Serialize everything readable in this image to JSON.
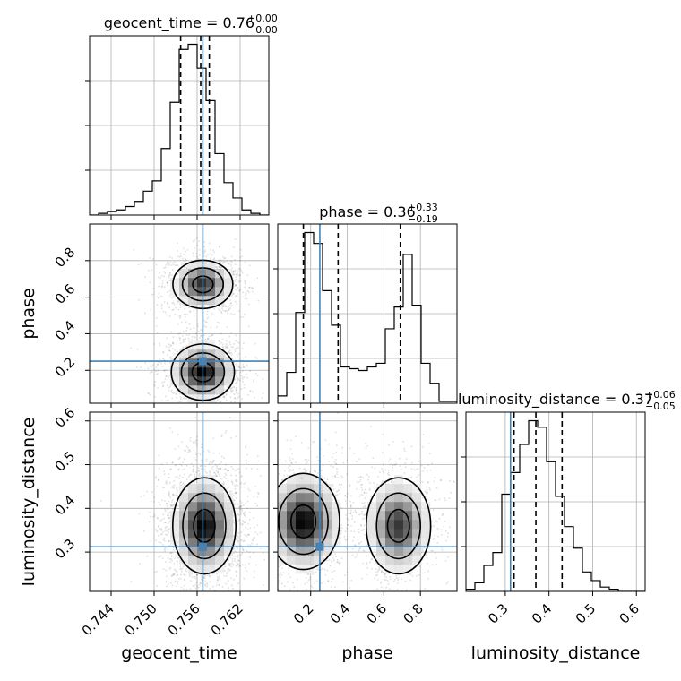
{
  "chart_data": {
    "type": "corner",
    "parameters": [
      "geocent_time",
      "phase",
      "luminosity_distance"
    ],
    "truth": {
      "geocent_time": 0.7568,
      "phase": 0.25,
      "luminosity_distance": 0.312
    },
    "titles": {
      "geocent_time": {
        "name": "geocent_time",
        "value": "0.76",
        "plus": "+0.00",
        "minus": "−0.00"
      },
      "phase": {
        "name": "phase",
        "value": "0.36",
        "plus": "+0.33",
        "minus": "−0.19"
      },
      "luminosity_distance": {
        "name": "luminosity_distance",
        "value": "0.37",
        "plus": "+0.06",
        "minus": "−0.05"
      }
    },
    "axes": {
      "geocent_time": {
        "range": [
          0.741,
          0.766
        ],
        "ticks": [
          0.744,
          0.75,
          0.756,
          0.762
        ],
        "tick_labels": [
          "0.744",
          "0.750",
          "0.756",
          "0.762"
        ]
      },
      "phase": {
        "range": [
          0.02,
          1.0
        ],
        "ticks": [
          0.2,
          0.4,
          0.6,
          0.8
        ],
        "tick_labels": [
          "0.2",
          "0.4",
          "0.6",
          "0.8"
        ]
      },
      "luminosity_distance": {
        "range": [
          0.21,
          0.62
        ],
        "ticks": [
          0.3,
          0.4,
          0.5,
          0.6
        ],
        "tick_labels": [
          "0.3",
          "0.4",
          "0.5",
          "0.6"
        ]
      }
    },
    "histograms": {
      "geocent_time": {
        "quantiles": [
          0.7537,
          0.7565,
          0.7577
        ],
        "counts": [
          0,
          1,
          2,
          3,
          5,
          8,
          14,
          20,
          39,
          66,
          97,
          100,
          86,
          67,
          36,
          19,
          10,
          3,
          1,
          0
        ]
      },
      "phase": {
        "quantiles": [
          0.16,
          0.35,
          0.69
        ],
        "counts": [
          4,
          17,
          50,
          94,
          88,
          62,
          43,
          20,
          19,
          18,
          20,
          22,
          41,
          53,
          82,
          54,
          22,
          11,
          1,
          1
        ]
      },
      "luminosity_distance": {
        "quantiles": [
          0.32,
          0.37,
          0.43
        ],
        "counts": [
          1,
          4,
          12,
          18,
          45,
          55,
          68,
          79,
          76,
          60,
          44,
          30,
          20,
          9,
          5,
          2,
          1,
          0,
          0,
          0
        ]
      }
    },
    "modes_2d": {
      "phase_vs_geocent_time": [
        {
          "x": 0.7568,
          "y": 0.67,
          "sx": 0.0019,
          "sy": 0.06,
          "w": 1.0
        },
        {
          "x": 0.7568,
          "y": 0.19,
          "sx": 0.002,
          "sy": 0.07,
          "w": 1.2
        }
      ],
      "luminosity_distance_vs_geocent_time": [
        {
          "x": 0.757,
          "y": 0.36,
          "sx": 0.002,
          "sy": 0.05,
          "w": 1.0
        }
      ],
      "luminosity_distance_vs_phase": [
        {
          "x": 0.16,
          "y": 0.37,
          "sx": 0.09,
          "sy": 0.05,
          "w": 1.0
        },
        {
          "x": 0.68,
          "y": 0.36,
          "sx": 0.08,
          "sy": 0.05,
          "w": 0.8
        }
      ]
    },
    "truth_color": "#4682b4",
    "grid": true
  }
}
